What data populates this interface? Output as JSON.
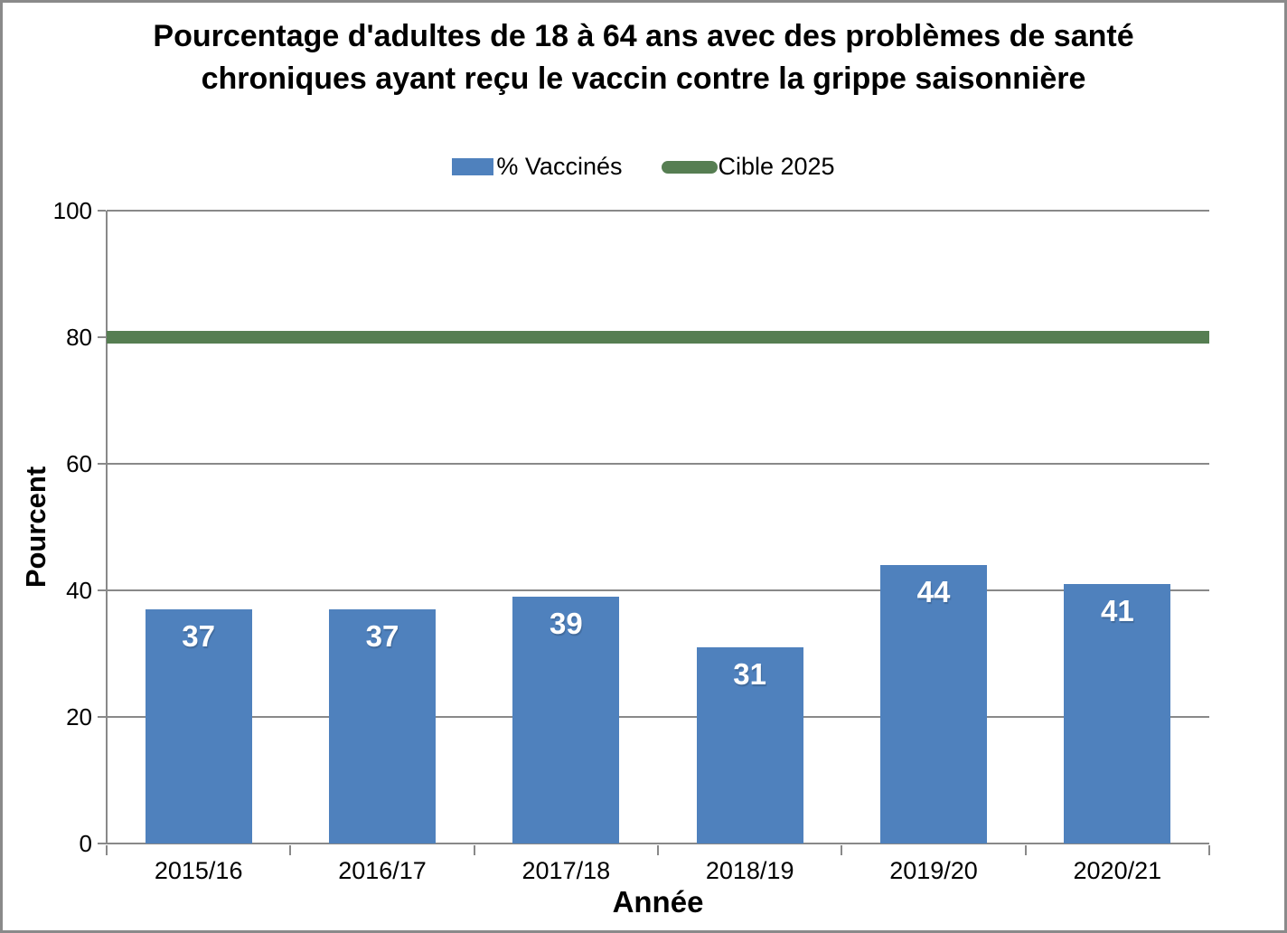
{
  "title": "Pourcentage d'adultes de 18 à 64 ans avec des problèmes de santé chroniques ayant reçu le vaccin contre la grippe saisonnière",
  "legend": [
    {
      "label": "% Vaccinés",
      "color": "#4f81bd",
      "shape": "rect"
    },
    {
      "label": "Cible 2025",
      "color": "#567e52",
      "shape": "capsule"
    }
  ],
  "colors": {
    "bar": "#4f81bd",
    "target": "#567e52",
    "axis": "#898989",
    "bar_label": "#ffffff"
  },
  "chart_data": {
    "type": "bar",
    "title": "Pourcentage d'adultes de 18 à 64 ans avec des problèmes de santé chroniques ayant reçu le vaccin contre la grippe saisonnière",
    "categories": [
      "2015/16",
      "2016/17",
      "2017/18",
      "2018/19",
      "2019/20",
      "2020/21"
    ],
    "series": [
      {
        "name": "% Vaccinés",
        "type": "bar",
        "values": [
          37,
          37,
          39,
          31,
          44,
          41
        ],
        "color": "#4f81bd"
      },
      {
        "name": "Cible 2025",
        "type": "target-line",
        "value": 80,
        "color": "#567e52"
      }
    ],
    "bar_labels": [
      37,
      37,
      39,
      31,
      44,
      41
    ],
    "xlabel": "Année",
    "ylabel": "Pourcent",
    "ylim": [
      0,
      100
    ],
    "yticks": [
      0,
      20,
      40,
      60,
      80,
      100
    ],
    "grid": true,
    "legend_position": "top"
  }
}
